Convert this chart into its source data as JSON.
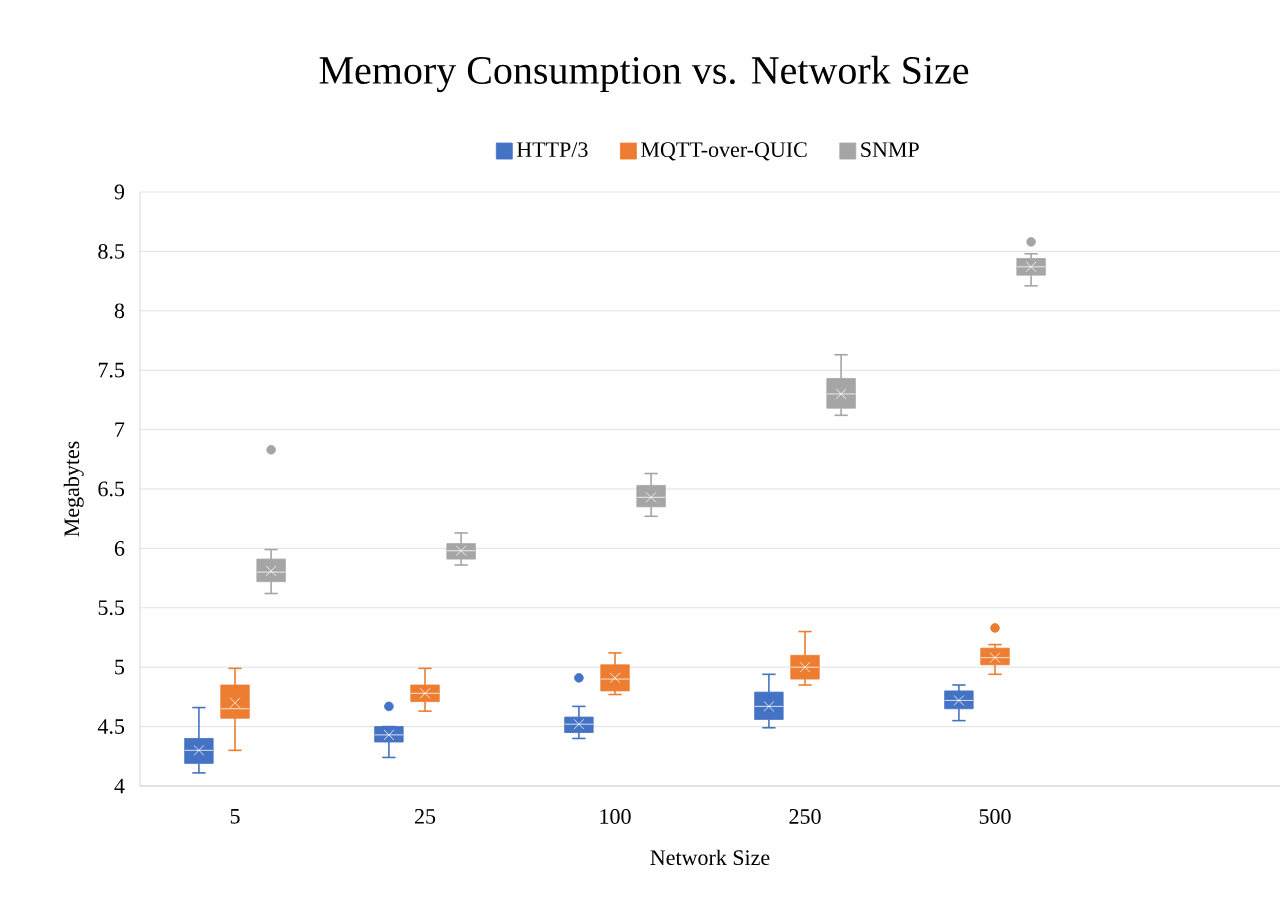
{
  "chart_data": {
    "type": "box",
    "title": "Memory Consumption vs. Network Size",
    "xlabel": "Network Size",
    "ylabel": "Megabytes",
    "categories": [
      "5",
      "25",
      "100",
      "250",
      "500"
    ],
    "ylim": [
      4,
      9
    ],
    "yticks": [
      4,
      4.5,
      5,
      5.5,
      6,
      6.5,
      7,
      7.5,
      8,
      8.5,
      9
    ],
    "grid": "y",
    "legend": "top",
    "series": [
      {
        "name": "HTTP/3",
        "color": "#4472c4",
        "boxes": [
          {
            "low": 4.11,
            "q1": 4.19,
            "median": 4.3,
            "q3": 4.4,
            "high": 4.66,
            "mean": 4.3
          },
          {
            "low": 4.24,
            "q1": 4.37,
            "median": 4.43,
            "q3": 4.5,
            "high": 4.5,
            "mean": 4.43,
            "outliers": [
              4.67
            ]
          },
          {
            "low": 4.4,
            "q1": 4.45,
            "median": 4.52,
            "q3": 4.58,
            "high": 4.67,
            "mean": 4.52,
            "outliers": [
              4.91
            ]
          },
          {
            "low": 4.49,
            "q1": 4.56,
            "median": 4.67,
            "q3": 4.79,
            "high": 4.94,
            "mean": 4.67
          },
          {
            "low": 4.55,
            "q1": 4.65,
            "median": 4.72,
            "q3": 4.8,
            "high": 4.85,
            "mean": 4.72
          }
        ]
      },
      {
        "name": "MQTT-over-QUIC",
        "color": "#ed7d31",
        "boxes": [
          {
            "low": 4.3,
            "q1": 4.57,
            "median": 4.65,
            "q3": 4.85,
            "high": 4.99,
            "mean": 4.7
          },
          {
            "low": 4.63,
            "q1": 4.71,
            "median": 4.78,
            "q3": 4.85,
            "high": 4.99,
            "mean": 4.78
          },
          {
            "low": 4.77,
            "q1": 4.8,
            "median": 4.9,
            "q3": 5.02,
            "high": 5.12,
            "mean": 4.91
          },
          {
            "low": 4.85,
            "q1": 4.9,
            "median": 5.0,
            "q3": 5.1,
            "high": 5.3,
            "mean": 5.0
          },
          {
            "low": 4.94,
            "q1": 5.02,
            "median": 5.08,
            "q3": 5.16,
            "high": 5.19,
            "mean": 5.08,
            "outliers": [
              5.33
            ]
          }
        ]
      },
      {
        "name": "SNMP",
        "color": "#a5a5a5",
        "boxes": [
          {
            "low": 5.62,
            "q1": 5.72,
            "median": 5.8,
            "q3": 5.91,
            "high": 5.99,
            "mean": 5.81,
            "outliers": [
              6.83
            ]
          },
          {
            "low": 5.86,
            "q1": 5.91,
            "median": 5.98,
            "q3": 6.04,
            "high": 6.13,
            "mean": 5.98
          },
          {
            "low": 6.27,
            "q1": 6.35,
            "median": 6.43,
            "q3": 6.53,
            "high": 6.63,
            "mean": 6.43
          },
          {
            "low": 7.12,
            "q1": 7.18,
            "median": 7.3,
            "q3": 7.43,
            "high": 7.63,
            "mean": 7.3
          },
          {
            "low": 8.21,
            "q1": 8.3,
            "median": 8.37,
            "q3": 8.44,
            "high": 8.48,
            "mean": 8.37,
            "outliers": [
              8.58
            ]
          }
        ]
      }
    ]
  }
}
